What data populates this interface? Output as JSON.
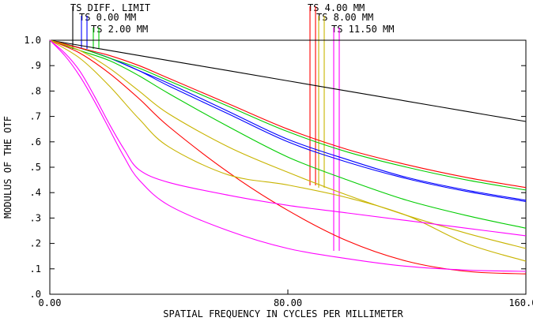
{
  "chart_data": {
    "type": "line",
    "title": "",
    "xlabel": "SPATIAL FREQUENCY IN CYCLES PER MILLIMETER",
    "ylabel": "MODULUS OF THE OTF",
    "xlim": [
      0,
      160
    ],
    "ylim": [
      0,
      1.0
    ],
    "xticks": [
      "0.00",
      "80.00",
      "160.00"
    ],
    "yticks": [
      ".0",
      ".1",
      ".2",
      ".3",
      ".4",
      ".5",
      ".6",
      ".7",
      ".8",
      ".9",
      "1.0"
    ],
    "grid": false,
    "legend": [
      {
        "label": "TS DIFF. LIMIT",
        "colors": [
          "#000000"
        ]
      },
      {
        "label": "TS 0.00 MM",
        "colors": [
          "#0000ff",
          "#0000ff"
        ]
      },
      {
        "label": "TS 2.00 MM",
        "colors": [
          "#00cc00",
          "#00cc00"
        ]
      },
      {
        "label": "TS 4.00 MM",
        "colors": [
          "#ff0000",
          "#ff0000"
        ]
      },
      {
        "label": "TS 8.00 MM",
        "colors": [
          "#c8b400",
          "#c8b400"
        ]
      },
      {
        "label": "TS 11.50 MM",
        "colors": [
          "#ff00ff",
          "#ff00ff"
        ]
      }
    ],
    "series": [
      {
        "color": "#000000",
        "x": [
          0,
          20,
          40,
          60,
          80,
          100,
          120,
          140,
          160
        ],
        "y": [
          1.0,
          0.96,
          0.92,
          0.88,
          0.84,
          0.8,
          0.76,
          0.72,
          0.68
        ]
      },
      {
        "color": "#0000ff",
        "x": [
          0,
          10,
          20,
          30,
          40,
          60,
          80,
          100,
          120,
          140,
          160
        ],
        "y": [
          1.0,
          0.97,
          0.93,
          0.88,
          0.83,
          0.72,
          0.61,
          0.53,
          0.46,
          0.41,
          0.37
        ]
      },
      {
        "color": "#0000ff",
        "x": [
          0,
          10,
          20,
          30,
          40,
          60,
          80,
          100,
          120,
          140,
          160
        ],
        "y": [
          1.0,
          0.97,
          0.93,
          0.88,
          0.82,
          0.71,
          0.6,
          0.52,
          0.455,
          0.405,
          0.365
        ]
      },
      {
        "color": "#00cc00",
        "x": [
          0,
          10,
          20,
          30,
          40,
          60,
          80,
          100,
          120,
          140,
          160
        ],
        "y": [
          1.0,
          0.97,
          0.93,
          0.89,
          0.84,
          0.74,
          0.64,
          0.56,
          0.5,
          0.45,
          0.41
        ]
      },
      {
        "color": "#00cc00",
        "x": [
          0,
          10,
          20,
          30,
          40,
          60,
          80,
          100,
          120,
          140,
          160
        ],
        "y": [
          1.0,
          0.96,
          0.92,
          0.86,
          0.79,
          0.66,
          0.54,
          0.45,
          0.37,
          0.31,
          0.26
        ]
      },
      {
        "color": "#ff0000",
        "x": [
          0,
          10,
          20,
          30,
          40,
          60,
          80,
          100,
          120,
          140,
          160
        ],
        "y": [
          1.0,
          0.97,
          0.94,
          0.9,
          0.85,
          0.75,
          0.65,
          0.57,
          0.51,
          0.46,
          0.42
        ]
      },
      {
        "color": "#ff0000",
        "x": [
          0,
          10,
          20,
          30,
          40,
          60,
          80,
          100,
          120,
          140,
          160
        ],
        "y": [
          1.0,
          0.95,
          0.87,
          0.77,
          0.66,
          0.48,
          0.33,
          0.21,
          0.13,
          0.09,
          0.08
        ]
      },
      {
        "color": "#c8b400",
        "x": [
          0,
          10,
          20,
          30,
          40,
          60,
          80,
          100,
          120,
          140,
          160
        ],
        "y": [
          1.0,
          0.96,
          0.89,
          0.8,
          0.71,
          0.58,
          0.48,
          0.39,
          0.31,
          0.24,
          0.18
        ]
      },
      {
        "color": "#c8b400",
        "x": [
          0,
          10,
          20,
          30,
          40,
          60,
          80,
          100,
          120,
          140,
          160
        ],
        "y": [
          1.0,
          0.93,
          0.82,
          0.69,
          0.58,
          0.47,
          0.43,
          0.38,
          0.31,
          0.2,
          0.13
        ]
      },
      {
        "color": "#ff00ff",
        "x": [
          0,
          5,
          10,
          15,
          20,
          25,
          30,
          40,
          60,
          80,
          100,
          120,
          140,
          160
        ],
        "y": [
          1.0,
          0.95,
          0.88,
          0.78,
          0.67,
          0.57,
          0.49,
          0.44,
          0.39,
          0.35,
          0.32,
          0.29,
          0.26,
          0.23
        ]
      },
      {
        "color": "#ff00ff",
        "x": [
          0,
          5,
          10,
          15,
          20,
          25,
          30,
          40,
          60,
          80,
          100,
          120,
          140,
          160
        ],
        "y": [
          1.0,
          0.94,
          0.86,
          0.76,
          0.65,
          0.54,
          0.45,
          0.35,
          0.25,
          0.18,
          0.14,
          0.11,
          0.095,
          0.09
        ]
      }
    ]
  }
}
